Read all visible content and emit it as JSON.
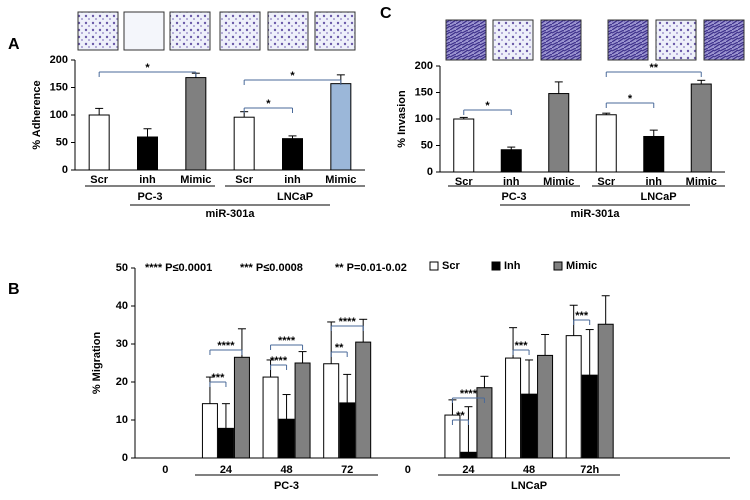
{
  "chart_data": [
    {
      "type": "bar",
      "panel": "A",
      "ylabel": "% Adherence",
      "categories": [
        "Scr",
        "inh",
        "Mimic",
        "Scr",
        "inh",
        "Mimic"
      ],
      "values": [
        100,
        60,
        168,
        96,
        57,
        157
      ],
      "errors": [
        12,
        15,
        8,
        10,
        5,
        16
      ],
      "colors": [
        "#ffffff",
        "#000000",
        "#808080",
        "#ffffff",
        "#000000",
        "#9bb7d9"
      ],
      "ylim": [
        0,
        200
      ],
      "yticks": [
        0,
        50,
        100,
        150,
        200
      ],
      "groups": [
        "PC-3",
        "LNCaP"
      ],
      "xlabel": "miR-301a",
      "significance": [
        "*",
        "*",
        "*"
      ]
    },
    {
      "type": "grouped_bar",
      "panel": "B",
      "ylabel": "% Migration",
      "categories": [
        "0",
        "24",
        "48",
        "72",
        "0",
        "24",
        "48",
        "72h"
      ],
      "series": [
        {
          "name": "Scr",
          "color": "#ffffff",
          "values": [
            null,
            14.3,
            21.3,
            24.8,
            null,
            11.3,
            26.3,
            32.2
          ],
          "errors": [
            null,
            7,
            4.5,
            11,
            null,
            4,
            8,
            8
          ]
        },
        {
          "name": "Inh",
          "color": "#000000",
          "values": [
            null,
            7.8,
            10.2,
            14.5,
            null,
            1.5,
            16.8,
            21.8
          ],
          "errors": [
            null,
            6.5,
            6.5,
            7.5,
            null,
            12,
            9,
            12
          ]
        },
        {
          "name": "Mimic",
          "color": "#808080",
          "values": [
            null,
            26.5,
            25,
            30.5,
            null,
            18.5,
            27,
            35.2
          ],
          "errors": [
            null,
            7.5,
            3,
            6,
            null,
            3,
            5.5,
            7.5
          ]
        }
      ],
      "ylim": [
        0,
        50
      ],
      "yticks": [
        0,
        10,
        20,
        30,
        40,
        50
      ],
      "groups": [
        "PC-3",
        "LNCaP"
      ],
      "annotations": [
        "**** P≤0.0001",
        "*** P≤0.0008",
        "** P=0.01-0.02"
      ],
      "significance": [
        "****",
        "***",
        "****",
        "****",
        "****",
        "**",
        "****",
        "**",
        "***",
        "***"
      ]
    },
    {
      "type": "bar",
      "panel": "C",
      "ylabel": "% Invasion",
      "categories": [
        "Scr",
        "inh",
        "Mimic",
        "Scr",
        "inh",
        "Mimic"
      ],
      "values": [
        100,
        42,
        148,
        108,
        67,
        166
      ],
      "errors": [
        3,
        5,
        22,
        3,
        12,
        7
      ],
      "colors": [
        "#ffffff",
        "#000000",
        "#808080",
        "#ffffff",
        "#000000",
        "#808080"
      ],
      "ylim": [
        0,
        200
      ],
      "yticks": [
        0,
        50,
        100,
        150,
        200
      ],
      "groups": [
        "PC-3",
        "LNCaP"
      ],
      "xlabel": "miR-301a",
      "significance": [
        "*",
        "*",
        "**"
      ]
    }
  ]
}
